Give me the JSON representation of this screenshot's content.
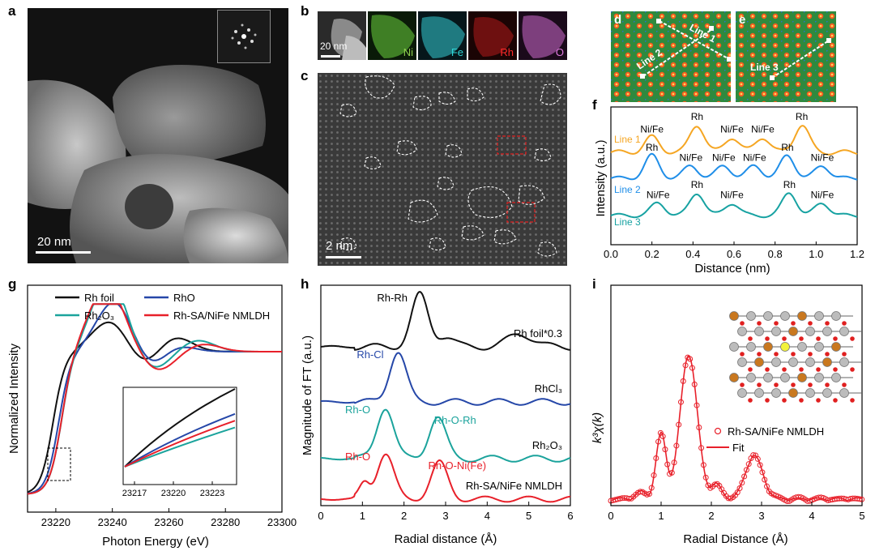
{
  "panels": {
    "a": {
      "label": "a",
      "scale": "20 nm"
    },
    "b": {
      "label": "b",
      "scale": "20 nm",
      "maps": [
        {
          "label": "Ni",
          "color": "#8fd14f"
        },
        {
          "label": "Fe",
          "color": "#2fd6d6"
        },
        {
          "label": "Rh",
          "color": "#ff2a2a"
        },
        {
          "label": "O",
          "color": "#e07ae0"
        }
      ]
    },
    "c": {
      "label": "c",
      "scale": "2 nm"
    },
    "d": {
      "label": "d",
      "lines": [
        "Line 1",
        "Line 2"
      ]
    },
    "e": {
      "label": "e",
      "lines": [
        "Line 3"
      ]
    },
    "f": {
      "label": "f"
    },
    "g": {
      "label": "g"
    },
    "h": {
      "label": "h"
    },
    "i": {
      "label": "i"
    }
  },
  "chart_data": [
    {
      "id": "f",
      "type": "line",
      "xlabel": "Distance (nm)",
      "ylabel": "Intensity (a.u.)",
      "xlim": [
        0.0,
        1.2
      ],
      "xticks": [
        "0.0",
        "0.2",
        "0.4",
        "0.6",
        "0.8",
        "1.0",
        "1.2"
      ],
      "series": [
        {
          "name": "Line 1",
          "color": "#f5a623",
          "annotations": [
            {
              "text": "Ni/Fe",
              "x": 0.2
            },
            {
              "text": "Rh",
              "x": 0.42
            },
            {
              "text": "Ni/Fe",
              "x": 0.59
            },
            {
              "text": "Ni/Fe",
              "x": 0.74
            },
            {
              "text": "Rh",
              "x": 0.93
            }
          ]
        },
        {
          "name": "Line 2",
          "color": "#1f8ee8",
          "annotations": [
            {
              "text": "Rh",
              "x": 0.2
            },
            {
              "text": "Ni/Fe",
              "x": 0.39
            },
            {
              "text": "Ni/Fe",
              "x": 0.55
            },
            {
              "text": "Ni/Fe",
              "x": 0.7
            },
            {
              "text": "Rh",
              "x": 0.86
            },
            {
              "text": "Ni/Fe",
              "x": 1.03
            }
          ]
        },
        {
          "name": "Line 3",
          "color": "#17a2a2",
          "annotations": [
            {
              "text": "Ni/Fe",
              "x": 0.23
            },
            {
              "text": "Rh",
              "x": 0.42
            },
            {
              "text": "Ni/Fe",
              "x": 0.59
            },
            {
              "text": "Rh",
              "x": 0.87
            },
            {
              "text": "Ni/Fe",
              "x": 1.03
            }
          ]
        }
      ]
    },
    {
      "id": "g",
      "type": "line",
      "xlabel": "Photon Energy (eV)",
      "ylabel": "Normalized Intensity",
      "xlim": [
        23210,
        23300
      ],
      "xticks": [
        "23220",
        "23240",
        "23260",
        "23280",
        "23300"
      ],
      "inset_xticks": [
        "23217",
        "23220",
        "23223"
      ],
      "series": [
        {
          "name": "Rh foil",
          "color": "#111111"
        },
        {
          "name": "RhO",
          "color": "#2547a8"
        },
        {
          "name": "Rh₂O₃",
          "color": "#1ba39c"
        },
        {
          "name": "Rh-SA/NiFe NMLDH",
          "color": "#e8202a"
        }
      ]
    },
    {
      "id": "h",
      "type": "line",
      "xlabel": "Radial distance (Å)",
      "ylabel": "Magnitude of FT (a.u.)",
      "xlim": [
        0,
        6
      ],
      "xticks": [
        "0",
        "1",
        "2",
        "3",
        "4",
        "5",
        "6"
      ],
      "series": [
        {
          "name": "Rh foil*0.3",
          "color": "#111111",
          "peaks": [
            {
              "text": "Rh-Rh",
              "x": 2.38
            }
          ]
        },
        {
          "name": "RhCl₃",
          "color": "#2547a8",
          "peaks": [
            {
              "text": "Rh-Cl",
              "x": 1.85
            }
          ]
        },
        {
          "name": "Rh₂O₃",
          "color": "#1ba39c",
          "peaks": [
            {
              "text": "Rh-O",
              "x": 1.55
            },
            {
              "text": "Rh-O-Rh",
              "x": 2.8
            }
          ]
        },
        {
          "name": "Rh-SA/NiFe NMLDH",
          "color": "#e8202a",
          "peaks": [
            {
              "text": "Rh-O",
              "x": 1.55
            },
            {
              "text": "Rh-O-Ni(Fe)",
              "x": 2.85
            }
          ]
        }
      ]
    },
    {
      "id": "i",
      "type": "line",
      "xlabel": "Radial Distance (Å)",
      "ylabel": "k³χ(k)",
      "xlim": [
        0,
        5
      ],
      "xticks": [
        "0",
        "1",
        "2",
        "3",
        "4",
        "5"
      ],
      "series": [
        {
          "name": "Rh-SA/NiFe NMLDH",
          "color": "#e8202a",
          "marker": "circle"
        },
        {
          "name": "Fit",
          "color": "#e8202a"
        }
      ]
    }
  ]
}
